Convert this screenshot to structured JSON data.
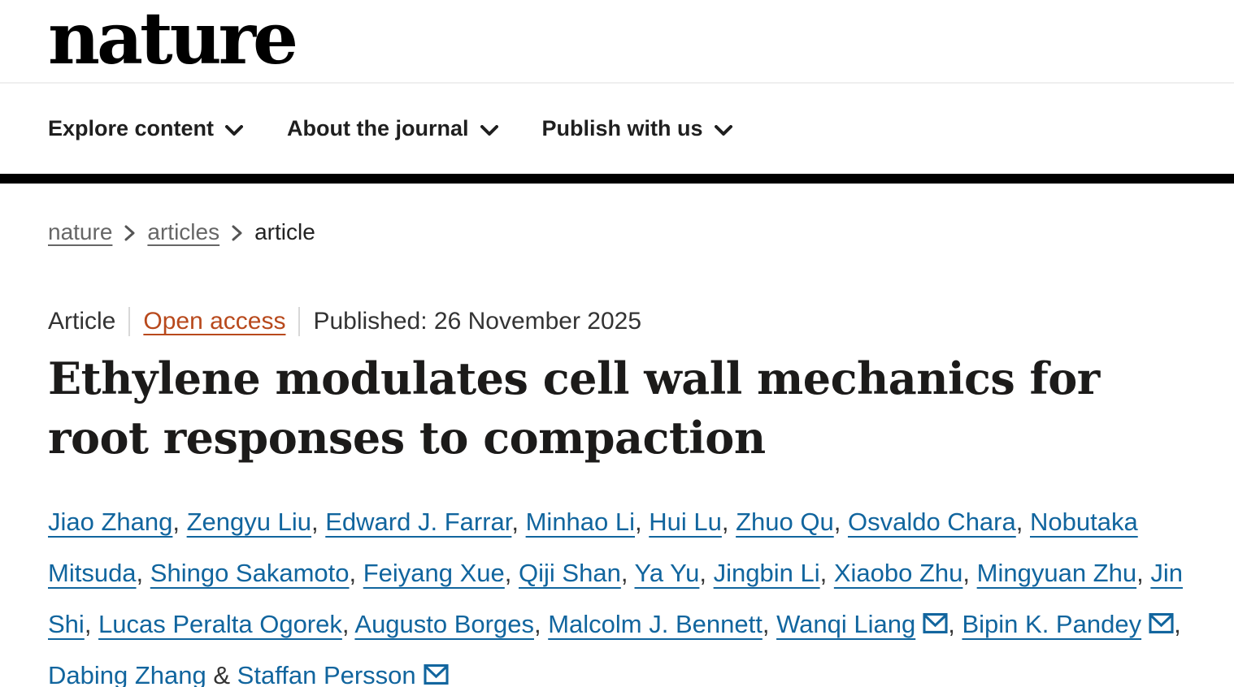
{
  "brand": {
    "logo_text": "nature"
  },
  "nav": {
    "items": [
      {
        "label": "Explore content"
      },
      {
        "label": "About the journal"
      },
      {
        "label": "Publish with us"
      }
    ]
  },
  "breadcrumb": {
    "items": [
      {
        "label": "nature",
        "is_link": true
      },
      {
        "label": "articles",
        "is_link": true
      },
      {
        "label": "article",
        "is_link": false
      }
    ]
  },
  "article_meta": {
    "type_label": "Article",
    "access_label": "Open access",
    "published_label": "Published: 26 November 2025"
  },
  "article": {
    "title": "Ethylene modulates cell wall mechanics for root responses to compaction"
  },
  "authors": {
    "list": [
      {
        "name": "Jiao Zhang",
        "email_icon": false
      },
      {
        "name": "Zengyu Liu",
        "email_icon": false
      },
      {
        "name": "Edward J. Farrar",
        "email_icon": false
      },
      {
        "name": "Minhao Li",
        "email_icon": false
      },
      {
        "name": "Hui Lu",
        "email_icon": false
      },
      {
        "name": "Zhuo Qu",
        "email_icon": false
      },
      {
        "name": "Osvaldo Chara",
        "email_icon": false
      },
      {
        "name": "Nobutaka Mitsuda",
        "email_icon": false
      },
      {
        "name": "Shingo Sakamoto",
        "email_icon": false
      },
      {
        "name": "Feiyang Xue",
        "email_icon": false
      },
      {
        "name": "Qiji Shan",
        "email_icon": false
      },
      {
        "name": "Ya Yu",
        "email_icon": false
      },
      {
        "name": "Jingbin Li",
        "email_icon": false
      },
      {
        "name": "Xiaobo Zhu",
        "email_icon": false
      },
      {
        "name": "Mingyuan Zhu",
        "email_icon": false
      },
      {
        "name": "Jin Shi",
        "email_icon": false
      },
      {
        "name": "Lucas Peralta Ogorek",
        "email_icon": false
      },
      {
        "name": "Augusto Borges",
        "email_icon": false
      },
      {
        "name": "Malcolm J. Bennett",
        "email_icon": false
      },
      {
        "name": "Wanqi Liang",
        "email_icon": true
      },
      {
        "name": "Bipin K. Pandey",
        "email_icon": true
      },
      {
        "name": "Dabing Zhang",
        "email_icon": false
      },
      {
        "name": "Staffan Persson",
        "email_icon": true
      }
    ],
    "separator": ", ",
    "last_separator": " & "
  },
  "colors": {
    "link_blue": "#11659e",
    "open_access_orange": "#b8491c",
    "breadcrumb_gray": "#666666",
    "text_dark": "#222222",
    "header_bar_black": "#000000"
  }
}
